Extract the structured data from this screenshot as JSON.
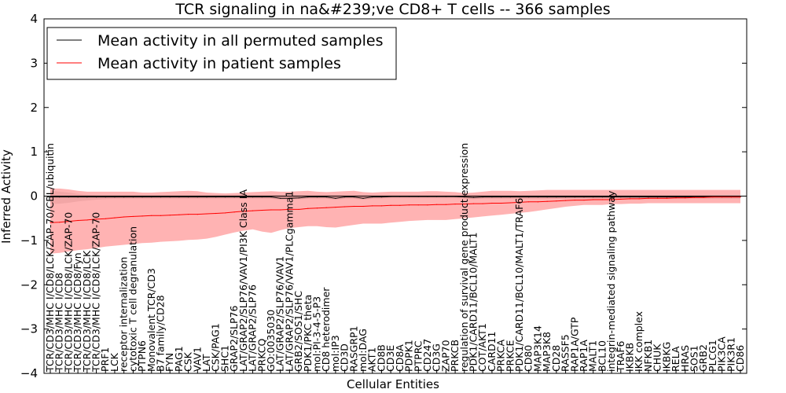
{
  "chart_data": {
    "type": "line",
    "title": "TCR signaling in na&#239;ve CD8+ T cells -- 366 samples",
    "xlabel": "Cellular Entities",
    "ylabel": "Inferred Activity",
    "ylim": [
      -4,
      4
    ],
    "yticks": [
      -4,
      -3,
      -2,
      -1,
      0,
      1,
      2,
      3,
      4
    ],
    "x_count": 76,
    "zero_line": true,
    "legend": {
      "placement": "top-left",
      "entries": [
        {
          "label": "Mean activity in all permuted samples",
          "color": "#000000"
        },
        {
          "label": "Mean activity in patient samples",
          "color": "#ff0000"
        }
      ]
    },
    "categories": [
      "TCR/CD3/MHC I/CD8/LCK/ZAP-70/CBL/ubiquitin",
      "TCR/CD3/MHC I/CD8",
      "TCR/CD3/MHC I/CD8/LCK/ZAP-70",
      "TCR/CD3/MHC I/CD8/Fyn",
      "TCR/CD3/MHC I/CD8/LCK",
      "TCR/CD3/MHC I/CD8/LCK/ZAP-70",
      "PRF1",
      "LCK",
      "receptor internalization",
      "cytotoxic T cell degranulation",
      "PTPN6",
      "Monovalent TCR/CD3",
      "B7 family/CD28",
      "FYN",
      "PAG1",
      "CSK",
      "VAV1",
      "LAT",
      "CSK/PAG1",
      "SHC1",
      "GRAP2/SLP76",
      "LAT/GRAP2/SLP76/VAV1/PI3K Class IA",
      "LAT/GRAP2/SLP76",
      "PRKCQ",
      "GO:0035030",
      "LAT/GRAP2/SLP76/VAV1",
      "LAT/GRAP2/SLP76/VAV1/PLCgamma1",
      "GRB2/SOS1/SHC",
      "PDK1/PKC theta",
      "mol:PI-3-4-5-P3",
      "CD8 heterodimer",
      "mol:IP3",
      "CD3D",
      "RASGRP1",
      "mol:DAG",
      "AKT1",
      "CD8B",
      "CD3E",
      "CD8A",
      "PDPK1",
      "PTPRC",
      "CD247",
      "CD3G",
      "ZAP70",
      "PRKCB",
      "regulation of survival gene product expression",
      "PDK1/CARD11/BCL10/MALT1",
      "COT/AKT1",
      "CARD11",
      "PRKCA",
      "PRKCE",
      "PDK1/CARD11/BCL10/MALT1/TRAF6",
      "CD80",
      "MAP3K14",
      "MAP3K8",
      "CD28",
      "RASSF5",
      "RAP1A/GTP",
      "RAP1A",
      "MALT1",
      "BCL10",
      "integrin-mediated signaling pathway",
      "TRAF6",
      "IKBKB",
      "IKK complex",
      "NFKB1",
      "CHUK",
      "IKBKG",
      "RELA",
      "HRAS",
      "SOS1",
      "GRB2",
      "PLCG1",
      "PIK3CA",
      "PIK3R1",
      "CD86"
    ],
    "series": [
      {
        "name": "Mean activity in all permuted samples",
        "color": "#000000",
        "values": [
          -0.02,
          -0.02,
          -0.02,
          -0.02,
          -0.02,
          -0.02,
          -0.02,
          -0.02,
          -0.02,
          -0.02,
          -0.02,
          -0.02,
          -0.02,
          -0.02,
          -0.02,
          -0.02,
          -0.02,
          -0.02,
          -0.02,
          -0.02,
          -0.02,
          -0.02,
          -0.02,
          -0.02,
          -0.02,
          -0.05,
          -0.05,
          -0.04,
          -0.02,
          -0.02,
          -0.02,
          -0.05,
          -0.02,
          -0.02,
          -0.05,
          -0.02,
          -0.02,
          -0.01,
          -0.01,
          -0.01,
          -0.01,
          -0.01,
          -0.01,
          -0.01,
          -0.01,
          -0.02,
          -0.03,
          -0.02,
          -0.02,
          -0.02,
          -0.02,
          -0.02,
          -0.02,
          -0.02,
          -0.02,
          -0.02,
          -0.02,
          -0.02,
          -0.02,
          -0.02,
          -0.02,
          -0.02,
          -0.02,
          -0.02,
          -0.02,
          -0.02,
          -0.02,
          -0.02,
          -0.02,
          -0.02,
          -0.02,
          -0.02,
          -0.02,
          -0.02,
          -0.02,
          -0.02
        ]
      },
      {
        "name": "Mean activity in patient samples",
        "color": "#ff0000",
        "values": [
          -0.6,
          -0.59,
          -0.57,
          -0.55,
          -0.54,
          -0.52,
          -0.51,
          -0.49,
          -0.47,
          -0.46,
          -0.45,
          -0.44,
          -0.44,
          -0.43,
          -0.42,
          -0.41,
          -0.41,
          -0.4,
          -0.39,
          -0.38,
          -0.36,
          -0.34,
          -0.33,
          -0.32,
          -0.31,
          -0.31,
          -0.3,
          -0.3,
          -0.28,
          -0.27,
          -0.26,
          -0.25,
          -0.24,
          -0.23,
          -0.23,
          -0.22,
          -0.22,
          -0.21,
          -0.21,
          -0.2,
          -0.2,
          -0.2,
          -0.19,
          -0.19,
          -0.18,
          -0.18,
          -0.17,
          -0.17,
          -0.16,
          -0.16,
          -0.15,
          -0.14,
          -0.13,
          -0.13,
          -0.12,
          -0.11,
          -0.1,
          -0.09,
          -0.09,
          -0.08,
          -0.08,
          -0.08,
          -0.07,
          -0.06,
          -0.06,
          -0.05,
          -0.05,
          -0.05,
          -0.04,
          -0.04,
          -0.03,
          -0.03,
          -0.02,
          -0.02,
          -0.02,
          -0.02
        ]
      }
    ],
    "bands": [
      {
        "name": "permuted spread",
        "color": "#bbbbbb",
        "upper": [
          0.12,
          0.1,
          0.08,
          0.05,
          0.03,
          0.02,
          0.02,
          0.02,
          0.02,
          0.02,
          0.02,
          0.02,
          0.02,
          0.02,
          0.02,
          0.02,
          0.02,
          0.02,
          0.02,
          0.02,
          0.02,
          0.02,
          0.02,
          0.02,
          0.02,
          0.02,
          0.02,
          0.02,
          0.02,
          0.02,
          0.02,
          0.02,
          0.02,
          0.02,
          0.02,
          0.02,
          0.02,
          0.02,
          0.02,
          0.02,
          0.02,
          0.02,
          0.02,
          0.02,
          0.02,
          0.02,
          0.02,
          0.02,
          0.02,
          0.02,
          0.02,
          0.02,
          0.02,
          0.02,
          0.02,
          0.02,
          0.02,
          0.02,
          0.02,
          0.02,
          0.02,
          0.02,
          0.02,
          0.02,
          0.02,
          0.02,
          0.02,
          0.02,
          0.02,
          0.02,
          0.02,
          0.02,
          0.02,
          0.02,
          0.02,
          0.02
        ],
        "lower": [
          -0.18,
          -0.17,
          -0.15,
          -0.12,
          -0.1,
          -0.08,
          -0.07,
          -0.06,
          -0.06,
          -0.06,
          -0.06,
          -0.06,
          -0.06,
          -0.06,
          -0.06,
          -0.06,
          -0.06,
          -0.06,
          -0.06,
          -0.06,
          -0.06,
          -0.06,
          -0.06,
          -0.06,
          -0.06,
          -0.08,
          -0.08,
          -0.07,
          -0.06,
          -0.06,
          -0.06,
          -0.08,
          -0.06,
          -0.06,
          -0.08,
          -0.06,
          -0.06,
          -0.05,
          -0.05,
          -0.05,
          -0.05,
          -0.05,
          -0.05,
          -0.05,
          -0.05,
          -0.06,
          -0.07,
          -0.06,
          -0.06,
          -0.06,
          -0.06,
          -0.06,
          -0.06,
          -0.06,
          -0.06,
          -0.06,
          -0.06,
          -0.06,
          -0.06,
          -0.06,
          -0.06,
          -0.06,
          -0.06,
          -0.06,
          -0.06,
          -0.06,
          -0.06,
          -0.06,
          -0.06,
          -0.06,
          -0.06,
          -0.06,
          -0.06,
          -0.06,
          -0.06,
          -0.06
        ]
      },
      {
        "name": "patient spread",
        "color": "#ff9999",
        "upper": [
          0.17,
          0.17,
          0.15,
          0.12,
          0.1,
          0.1,
          0.1,
          0.1,
          0.1,
          0.1,
          0.08,
          0.08,
          0.09,
          0.1,
          0.11,
          0.12,
          0.11,
          0.08,
          0.07,
          0.06,
          0.07,
          0.08,
          0.09,
          0.1,
          0.11,
          0.1,
          0.1,
          0.11,
          0.12,
          0.1,
          0.09,
          0.1,
          0.11,
          0.12,
          0.09,
          0.08,
          0.09,
          0.1,
          0.1,
          0.1,
          0.1,
          0.11,
          0.11,
          0.1,
          0.09,
          0.07,
          0.08,
          0.1,
          0.12,
          0.12,
          0.12,
          0.11,
          0.12,
          0.13,
          0.14,
          0.14,
          0.14,
          0.14,
          0.14,
          0.14,
          0.14,
          0.14,
          0.14,
          0.14,
          0.14,
          0.14,
          0.14,
          0.14,
          0.14,
          0.14,
          0.14,
          0.14,
          0.14,
          0.14,
          0.14,
          0.14
        ],
        "lower": [
          -1.3,
          -1.28,
          -1.25,
          -1.22,
          -1.2,
          -1.17,
          -1.14,
          -1.12,
          -1.1,
          -1.08,
          -1.06,
          -1.05,
          -1.03,
          -1.02,
          -1.01,
          -0.99,
          -0.98,
          -0.96,
          -0.92,
          -0.87,
          -0.82,
          -0.78,
          -0.75,
          -0.8,
          -0.83,
          -0.77,
          -0.72,
          -0.7,
          -0.68,
          -0.68,
          -0.7,
          -0.71,
          -0.68,
          -0.65,
          -0.62,
          -0.62,
          -0.62,
          -0.6,
          -0.58,
          -0.56,
          -0.55,
          -0.54,
          -0.54,
          -0.54,
          -0.52,
          -0.5,
          -0.48,
          -0.46,
          -0.44,
          -0.42,
          -0.4,
          -0.38,
          -0.36,
          -0.33,
          -0.3,
          -0.27,
          -0.24,
          -0.22,
          -0.2,
          -0.2,
          -0.2,
          -0.18,
          -0.18,
          -0.17,
          -0.17,
          -0.16,
          -0.16,
          -0.16,
          -0.16,
          -0.16,
          -0.16,
          -0.16,
          -0.16,
          -0.16,
          -0.16,
          -0.16
        ]
      }
    ]
  }
}
